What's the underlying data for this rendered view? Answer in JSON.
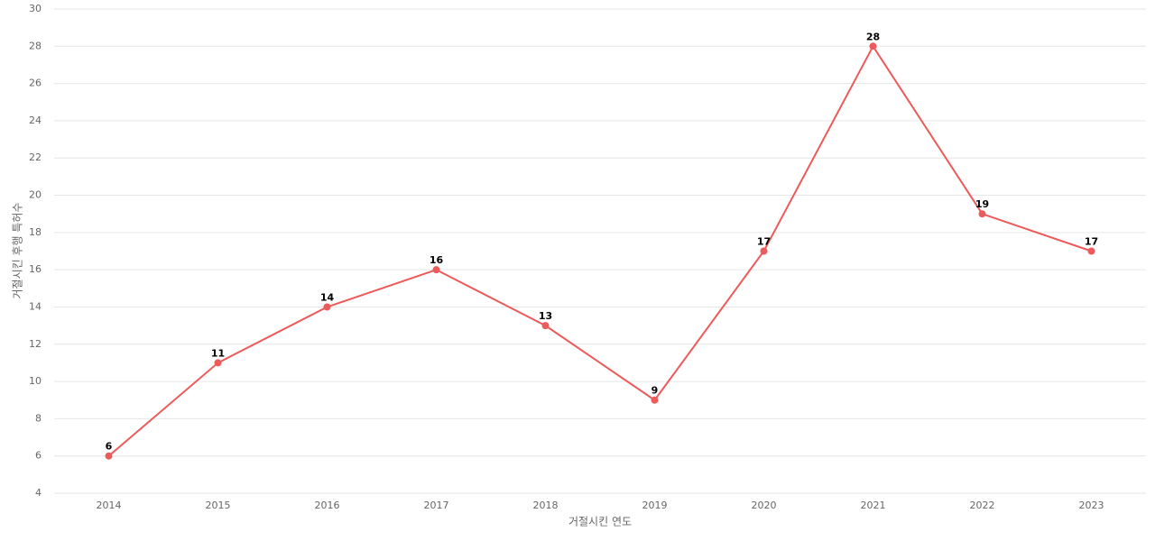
{
  "chart_data": {
    "type": "line",
    "categories": [
      "2014",
      "2015",
      "2016",
      "2017",
      "2018",
      "2019",
      "2020",
      "2021",
      "2022",
      "2023"
    ],
    "values": [
      6,
      11,
      14,
      16,
      13,
      9,
      17,
      28,
      19,
      17
    ],
    "color": "#ec5a5a",
    "x_label": "거절시킨 연도",
    "y_label": "거절시킨 후행 특허수",
    "ylim": [
      4,
      30
    ],
    "yticks": [
      4,
      6,
      8,
      10,
      12,
      14,
      16,
      18,
      20,
      22,
      24,
      26,
      28,
      30
    ],
    "grid": true
  }
}
